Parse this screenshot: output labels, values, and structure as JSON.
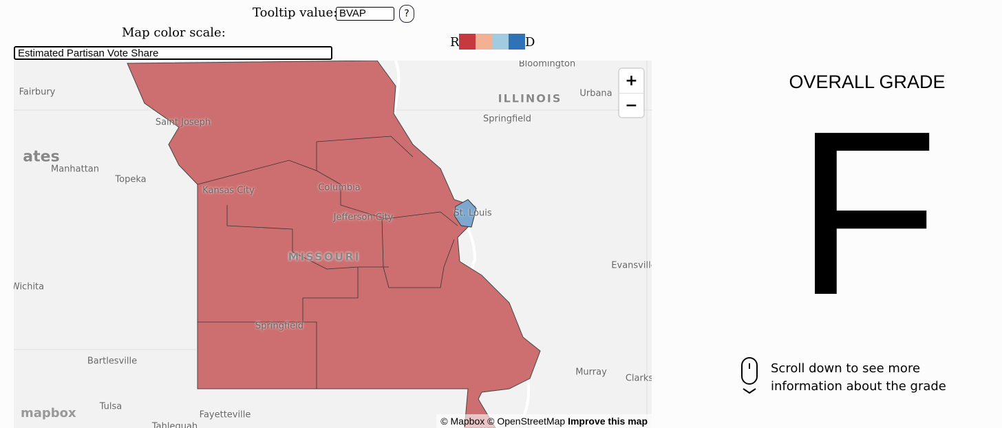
{
  "controls": {
    "tooltip_label": "Tooltip value:",
    "tooltip_value": "BVAP",
    "help": "?",
    "scale_label": "Map color scale:",
    "scale_value": "Estimated Partisan Vote Share"
  },
  "legend": {
    "left": "R",
    "right": "D",
    "colors": [
      "#c6393e",
      "#f4b092",
      "#a2cbe2",
      "#2f73b6"
    ]
  },
  "map": {
    "labels": [
      "Bloomington",
      "ILLINOIS",
      "Urbana",
      "Fairbury",
      "Springfield",
      "Saint Joseph",
      "ates",
      "Manhattan",
      "Topeka",
      "Kansas City",
      "Columbia",
      "St. Louis",
      "Jefferson City",
      "MISSOURI",
      "Evansville",
      "Wichita",
      "Springfield",
      "Bartlesville",
      "Murray",
      "Clarks",
      "Tulsa",
      "Fayetteville",
      "Tahlequah"
    ],
    "zoom_in": "+",
    "zoom_out": "−",
    "logo": "mapbox",
    "attribution": "© Mapbox © OpenStreetMap",
    "improve": "Improve this map"
  },
  "grade": {
    "title": "OVERALL GRADE",
    "value": "F"
  },
  "scroll_hint": "Scroll down to see more information about the grade"
}
